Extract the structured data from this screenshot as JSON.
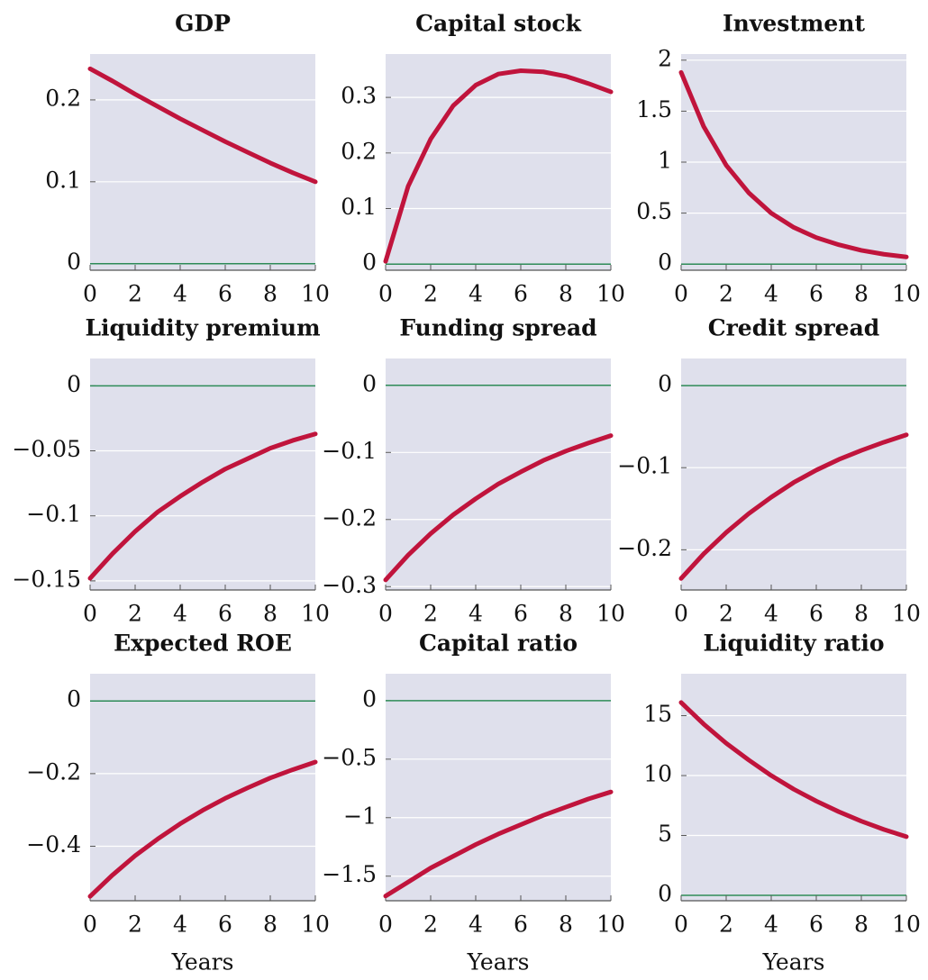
{
  "chart_data": [
    {
      "type": "line",
      "title": "GDP",
      "x": [
        0,
        1,
        2,
        3,
        4,
        5,
        6,
        7,
        8,
        9,
        10
      ],
      "series": [
        {
          "color": "#c0143c",
          "values": [
            0.238,
            0.223,
            0.207,
            0.192,
            0.177,
            0.163,
            0.149,
            0.136,
            0.123,
            0.111,
            0.1
          ]
        }
      ],
      "xlim": [
        0,
        10
      ],
      "xticks": [
        0,
        2,
        4,
        6,
        8,
        10
      ],
      "ylim": [
        -0.008,
        0.256
      ],
      "yticks": [
        0,
        0.1,
        0.2
      ],
      "grid": true,
      "hline": 0,
      "hline_color": "#2e8b57"
    },
    {
      "type": "line",
      "title": "Capital stock",
      "x": [
        0,
        1,
        2,
        3,
        4,
        5,
        6,
        7,
        8,
        9,
        10
      ],
      "series": [
        {
          "color": "#c0143c",
          "values": [
            0.005,
            0.14,
            0.225,
            0.285,
            0.322,
            0.342,
            0.348,
            0.346,
            0.338,
            0.325,
            0.31
          ]
        }
      ],
      "xlim": [
        0,
        10
      ],
      "xticks": [
        0,
        2,
        4,
        6,
        8,
        10
      ],
      "ylim": [
        -0.011,
        0.378
      ],
      "yticks": [
        0,
        0.1,
        0.2,
        0.3
      ],
      "grid": true,
      "hline": 0,
      "hline_color": "#2e8b57"
    },
    {
      "type": "line",
      "title": "Investment",
      "x": [
        0,
        1,
        2,
        3,
        4,
        5,
        6,
        7,
        8,
        9,
        10
      ],
      "series": [
        {
          "color": "#c0143c",
          "values": [
            1.88,
            1.35,
            0.97,
            0.7,
            0.5,
            0.36,
            0.26,
            0.19,
            0.135,
            0.097,
            0.07
          ]
        }
      ],
      "xlim": [
        0,
        10
      ],
      "xticks": [
        0,
        2,
        4,
        6,
        8,
        10
      ],
      "ylim": [
        -0.06,
        2.06
      ],
      "yticks": [
        0,
        0.5,
        1,
        1.5,
        2
      ],
      "grid": true,
      "hline": 0,
      "hline_color": "#2e8b57"
    },
    {
      "type": "line",
      "title": "Liquidity premium",
      "x": [
        0,
        1,
        2,
        3,
        4,
        5,
        6,
        7,
        8,
        9,
        10
      ],
      "series": [
        {
          "color": "#c0143c",
          "values": [
            -0.148,
            -0.129,
            -0.112,
            -0.097,
            -0.085,
            -0.074,
            -0.064,
            -0.056,
            -0.048,
            -0.042,
            -0.037
          ]
        }
      ],
      "xlim": [
        0,
        10
      ],
      "xticks": [
        0,
        2,
        4,
        6,
        8,
        10
      ],
      "ylim": [
        -0.157,
        0.021
      ],
      "yticks": [
        {
          "value": -0.15,
          "label": "−0.15"
        },
        {
          "value": -0.1,
          "label": "−0.1"
        },
        {
          "value": -0.05,
          "label": "−0.05"
        },
        0
      ],
      "grid": true,
      "hline": 0,
      "hline_color": "#2e8b57"
    },
    {
      "type": "line",
      "title": "Funding spread",
      "x": [
        0,
        1,
        2,
        3,
        4,
        5,
        6,
        7,
        8,
        9,
        10
      ],
      "series": [
        {
          "color": "#c0143c",
          "values": [
            -0.29,
            -0.253,
            -0.221,
            -0.193,
            -0.169,
            -0.147,
            -0.129,
            -0.112,
            -0.098,
            -0.086,
            -0.075
          ]
        }
      ],
      "xlim": [
        0,
        10
      ],
      "xticks": [
        0,
        2,
        4,
        6,
        8,
        10
      ],
      "ylim": [
        -0.305,
        0.04
      ],
      "yticks": [
        {
          "value": -0.3,
          "label": "−0.3"
        },
        {
          "value": -0.2,
          "label": "−0.2"
        },
        {
          "value": -0.1,
          "label": "−0.1"
        },
        0
      ],
      "grid": true,
      "hline": 0,
      "hline_color": "#2e8b57"
    },
    {
      "type": "line",
      "title": "Credit spread",
      "x": [
        0,
        1,
        2,
        3,
        4,
        5,
        6,
        7,
        8,
        9,
        10
      ],
      "series": [
        {
          "color": "#c0143c",
          "values": [
            -0.235,
            -0.205,
            -0.179,
            -0.156,
            -0.136,
            -0.118,
            -0.103,
            -0.09,
            -0.079,
            -0.069,
            -0.06
          ]
        }
      ],
      "xlim": [
        0,
        10
      ],
      "xticks": [
        0,
        2,
        4,
        6,
        8,
        10
      ],
      "ylim": [
        -0.249,
        0.033
      ],
      "yticks": [
        {
          "value": -0.2,
          "label": "−0.2"
        },
        {
          "value": -0.1,
          "label": "−0.1"
        },
        0
      ],
      "grid": true,
      "hline": 0,
      "hline_color": "#2e8b57"
    },
    {
      "type": "line",
      "title": "Expected ROE",
      "x": [
        0,
        1,
        2,
        3,
        4,
        5,
        6,
        7,
        8,
        9,
        10
      ],
      "series": [
        {
          "color": "#c0143c",
          "values": [
            -0.538,
            -0.479,
            -0.426,
            -0.38,
            -0.338,
            -0.301,
            -0.268,
            -0.239,
            -0.212,
            -0.189,
            -0.168
          ]
        }
      ],
      "xlim": [
        0,
        10
      ],
      "xticks": [
        0,
        2,
        4,
        6,
        8,
        10
      ],
      "ylim": [
        -0.55,
        0.075
      ],
      "yticks": [
        {
          "value": -0.4,
          "label": "−0.4"
        },
        {
          "value": -0.2,
          "label": "−0.2"
        },
        0
      ],
      "grid": true,
      "hline": 0,
      "hline_color": "#2e8b57",
      "xlabel": "Years"
    },
    {
      "type": "line",
      "title": "Capital ratio",
      "x": [
        0,
        1,
        2,
        3,
        4,
        5,
        6,
        7,
        8,
        9,
        10
      ],
      "series": [
        {
          "color": "#c0143c",
          "values": [
            -1.67,
            -1.55,
            -1.43,
            -1.33,
            -1.23,
            -1.14,
            -1.06,
            -0.98,
            -0.91,
            -0.84,
            -0.78
          ]
        }
      ],
      "xlim": [
        0,
        10
      ],
      "xticks": [
        0,
        2,
        4,
        6,
        8,
        10
      ],
      "ylim": [
        -1.71,
        0.23
      ],
      "yticks": [
        {
          "value": -1.5,
          "label": "−1.5"
        },
        {
          "value": -1,
          "label": "−1"
        },
        {
          "value": -0.5,
          "label": "−0.5"
        },
        0
      ],
      "grid": true,
      "hline": 0,
      "hline_color": "#2e8b57",
      "xlabel": "Years"
    },
    {
      "type": "line",
      "title": "Liquidity ratio",
      "x": [
        0,
        1,
        2,
        3,
        4,
        5,
        6,
        7,
        8,
        9,
        10
      ],
      "series": [
        {
          "color": "#c0143c",
          "values": [
            16.1,
            14.3,
            12.7,
            11.3,
            10.0,
            8.86,
            7.87,
            6.98,
            6.19,
            5.5,
            4.9
          ]
        }
      ],
      "xlim": [
        0,
        10
      ],
      "xticks": [
        0,
        2,
        4,
        6,
        8,
        10
      ],
      "ylim": [
        -0.45,
        18.5
      ],
      "yticks": [
        0,
        5,
        10,
        15
      ],
      "grid": true,
      "hline": 0,
      "hline_color": "#2e8b57",
      "xlabel": "Years"
    }
  ]
}
